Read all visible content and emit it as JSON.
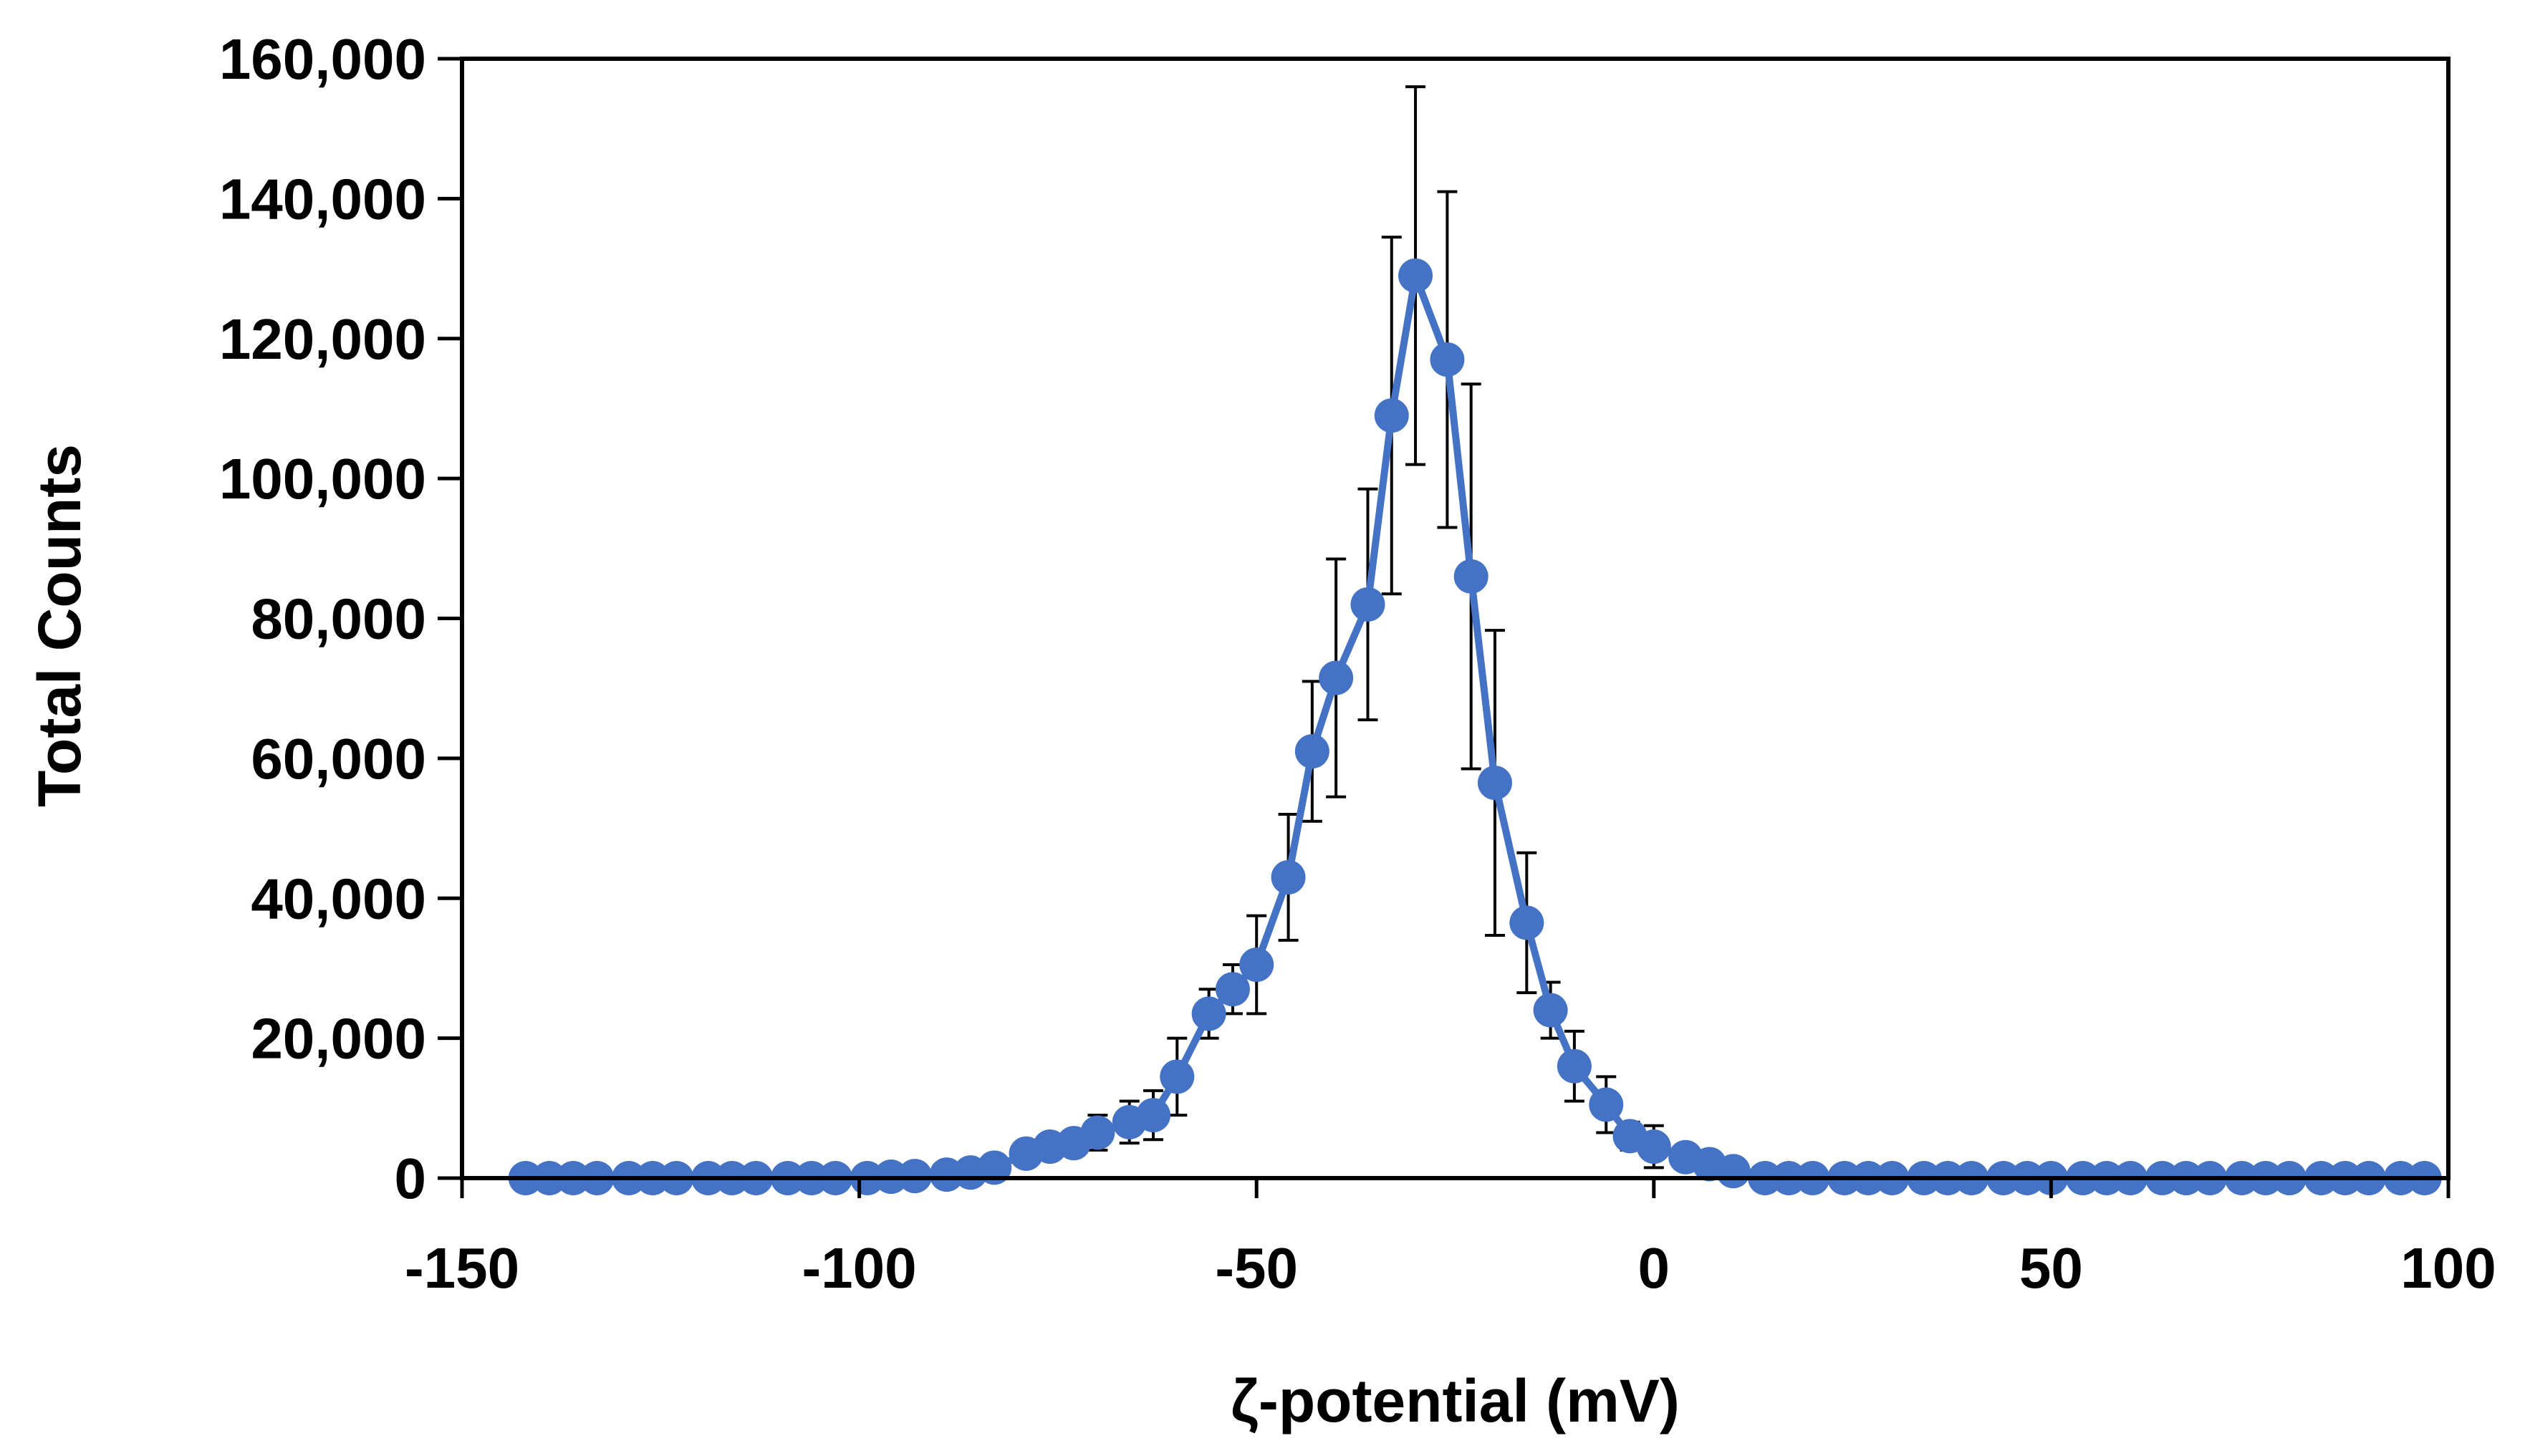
{
  "chart_data": {
    "type": "line",
    "title": "",
    "xlabel": "ζ-potential (mV)",
    "ylabel": "Total Counts",
    "xlim": [
      -150,
      100
    ],
    "ylim": [
      0,
      160000
    ],
    "x_ticks": [
      -150,
      -100,
      -50,
      0,
      50,
      100
    ],
    "x_tick_labels": [
      "-150",
      "-100",
      "-50",
      "0",
      "50",
      "100"
    ],
    "y_ticks": [
      0,
      20000,
      40000,
      60000,
      80000,
      100000,
      120000,
      140000,
      160000
    ],
    "y_tick_labels": [
      "0",
      "20,000",
      "40,000",
      "60,000",
      "80,000",
      "100,000",
      "120,000",
      "140,000",
      "160,000"
    ],
    "grid": false,
    "legend": "none",
    "colors": {
      "series": "#4472C4",
      "error_bars": "#000000",
      "axes": "#000000"
    },
    "series": [
      {
        "name": "Total Counts",
        "marker": "circle",
        "x": [
          -142,
          -139,
          -136,
          -133,
          -129,
          -126,
          -123,
          -119,
          -116,
          -113,
          -109,
          -106,
          -103,
          -99,
          -96,
          -93,
          -89,
          -86,
          -83,
          -79,
          -76,
          -73,
          -70,
          -66,
          -63,
          -60,
          -56,
          -53,
          -50,
          -46,
          -43,
          -40,
          -36,
          -33,
          -30,
          -26,
          -23,
          -20,
          -16,
          -13,
          -10,
          -6,
          -3,
          0,
          4,
          7,
          10,
          14,
          17,
          20,
          24,
          27,
          30,
          34,
          37,
          40,
          44,
          47,
          50,
          54,
          57,
          60,
          64,
          67,
          70,
          74,
          77,
          80,
          84,
          87,
          90,
          94,
          97
        ],
        "y": [
          0,
          0,
          0,
          0,
          0,
          0,
          0,
          0,
          0,
          0,
          0,
          0,
          0,
          0,
          200,
          300,
          500,
          800,
          1500,
          3500,
          4500,
          5000,
          6500,
          8000,
          9000,
          14500,
          23500,
          27000,
          30500,
          43000,
          61000,
          71500,
          82000,
          109000,
          129000,
          117000,
          86000,
          56500,
          36500,
          24000,
          16000,
          10500,
          6000,
          4500,
          3000,
          2000,
          1000,
          0,
          0,
          0,
          0,
          0,
          0,
          0,
          0,
          0,
          0,
          0,
          0,
          0,
          0,
          0,
          0,
          0,
          0,
          0,
          0,
          0,
          0,
          0,
          0,
          0,
          0
        ],
        "error": [
          0,
          0,
          0,
          0,
          0,
          0,
          0,
          0,
          0,
          0,
          0,
          0,
          0,
          0,
          0,
          0,
          0,
          0,
          0,
          800,
          1000,
          1500,
          2500,
          3000,
          3500,
          5500,
          3500,
          3500,
          7000,
          9000,
          10000,
          17000,
          16500,
          25500,
          27000,
          24000,
          27500,
          21800,
          10000,
          4000,
          5000,
          4000,
          2000,
          3000,
          1000,
          0,
          0,
          0,
          0,
          0,
          0,
          0,
          0,
          0,
          0,
          0,
          0,
          0,
          0,
          0,
          0,
          0,
          0,
          0,
          0,
          0,
          0,
          0,
          0,
          0,
          0,
          0,
          0
        ]
      }
    ]
  }
}
